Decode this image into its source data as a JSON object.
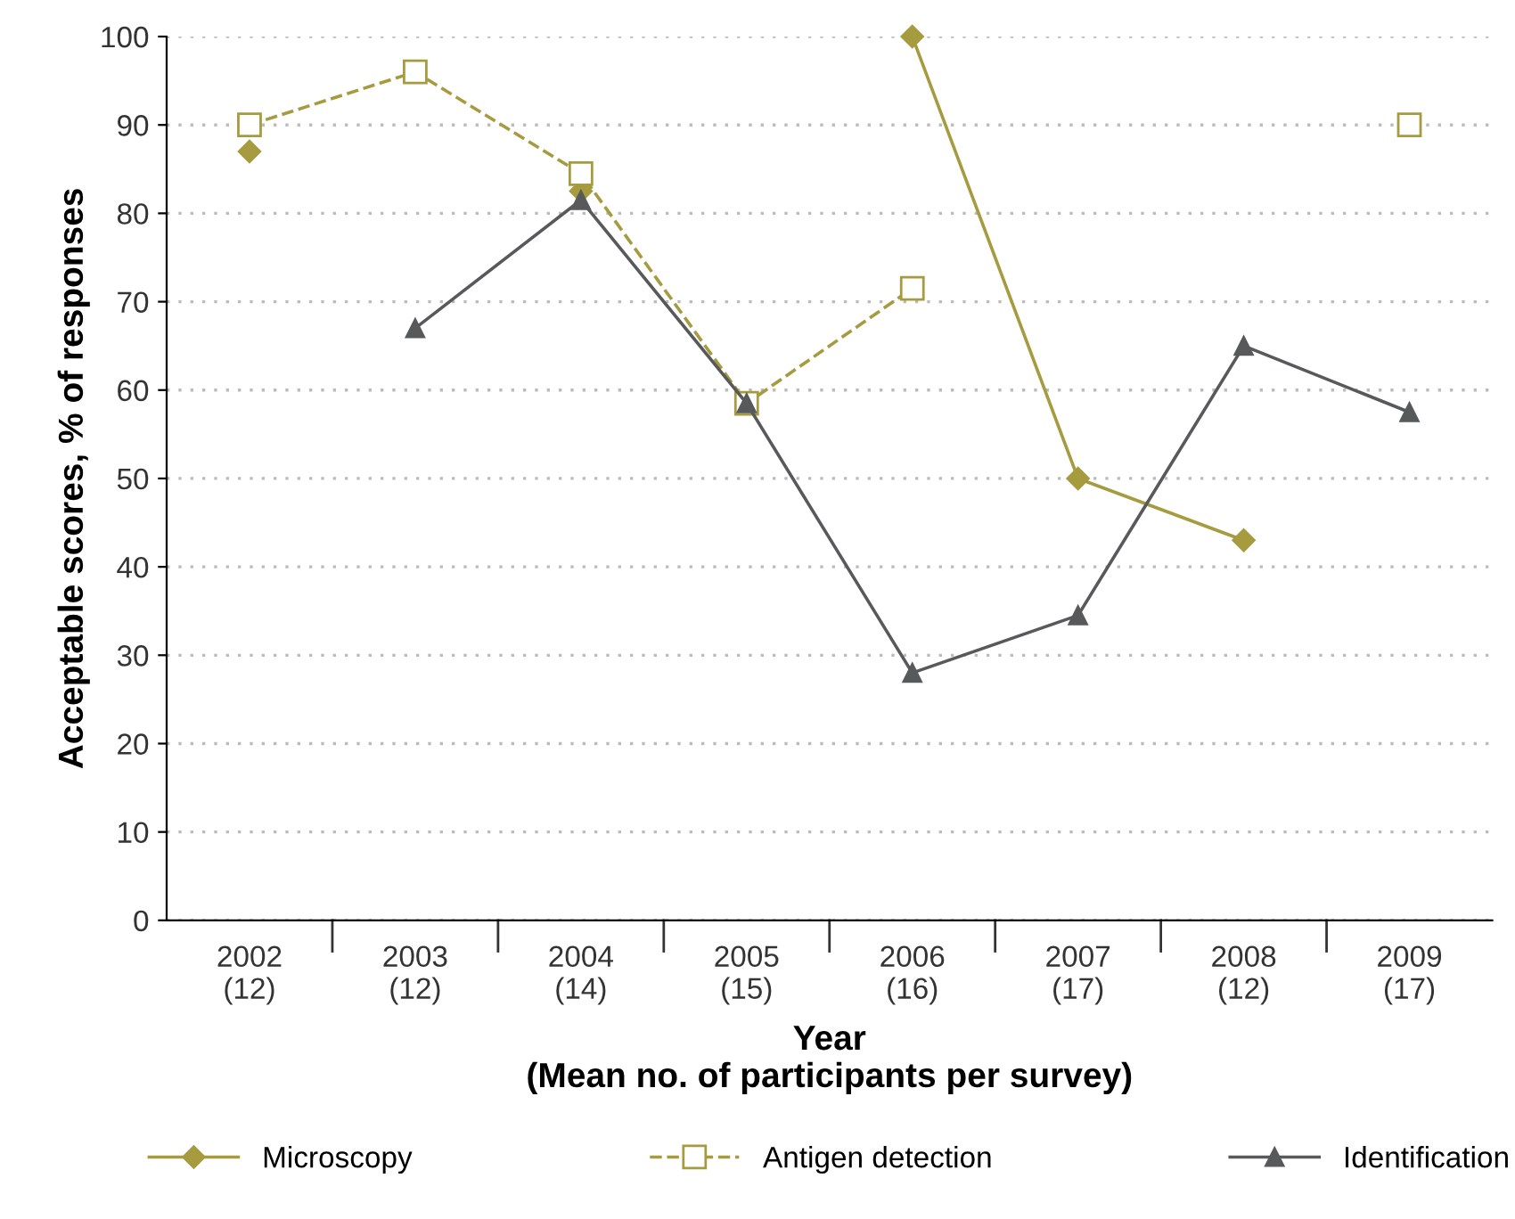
{
  "chart_data": {
    "type": "line",
    "xlabel": "Year\n(Mean no. of participants per survey)",
    "ylabel": "Acceptable scores, % of responses",
    "categories": [
      "2002\n(12)",
      "2003\n(12)",
      "2004\n(14)",
      "2005\n(15)",
      "2006\n(16)",
      "2007\n(17)",
      "2008\n(12)",
      "2009\n(17)"
    ],
    "series": [
      {
        "name": "Microscopy",
        "color": "#a69b3f",
        "marker": "diamond",
        "line_style": "solid",
        "values": [
          87,
          null,
          82.5,
          null,
          100,
          50,
          43,
          null
        ]
      },
      {
        "name": "Antigen detection",
        "color": "#a69b3f",
        "marker": "square",
        "line_style": "dashed",
        "values": [
          90,
          96,
          84.5,
          58.5,
          71.5,
          null,
          null,
          90
        ]
      },
      {
        "name": "Identification",
        "color": "#58595b",
        "marker": "triangle",
        "line_style": "solid",
        "values": [
          null,
          67,
          81.5,
          58.5,
          28,
          34.5,
          65,
          57.5
        ]
      }
    ],
    "ylim": [
      0,
      100
    ],
    "yticks": [
      0,
      10,
      20,
      30,
      40,
      50,
      60,
      70,
      80,
      90,
      100
    ],
    "grid": "y",
    "legend": "bottom"
  }
}
